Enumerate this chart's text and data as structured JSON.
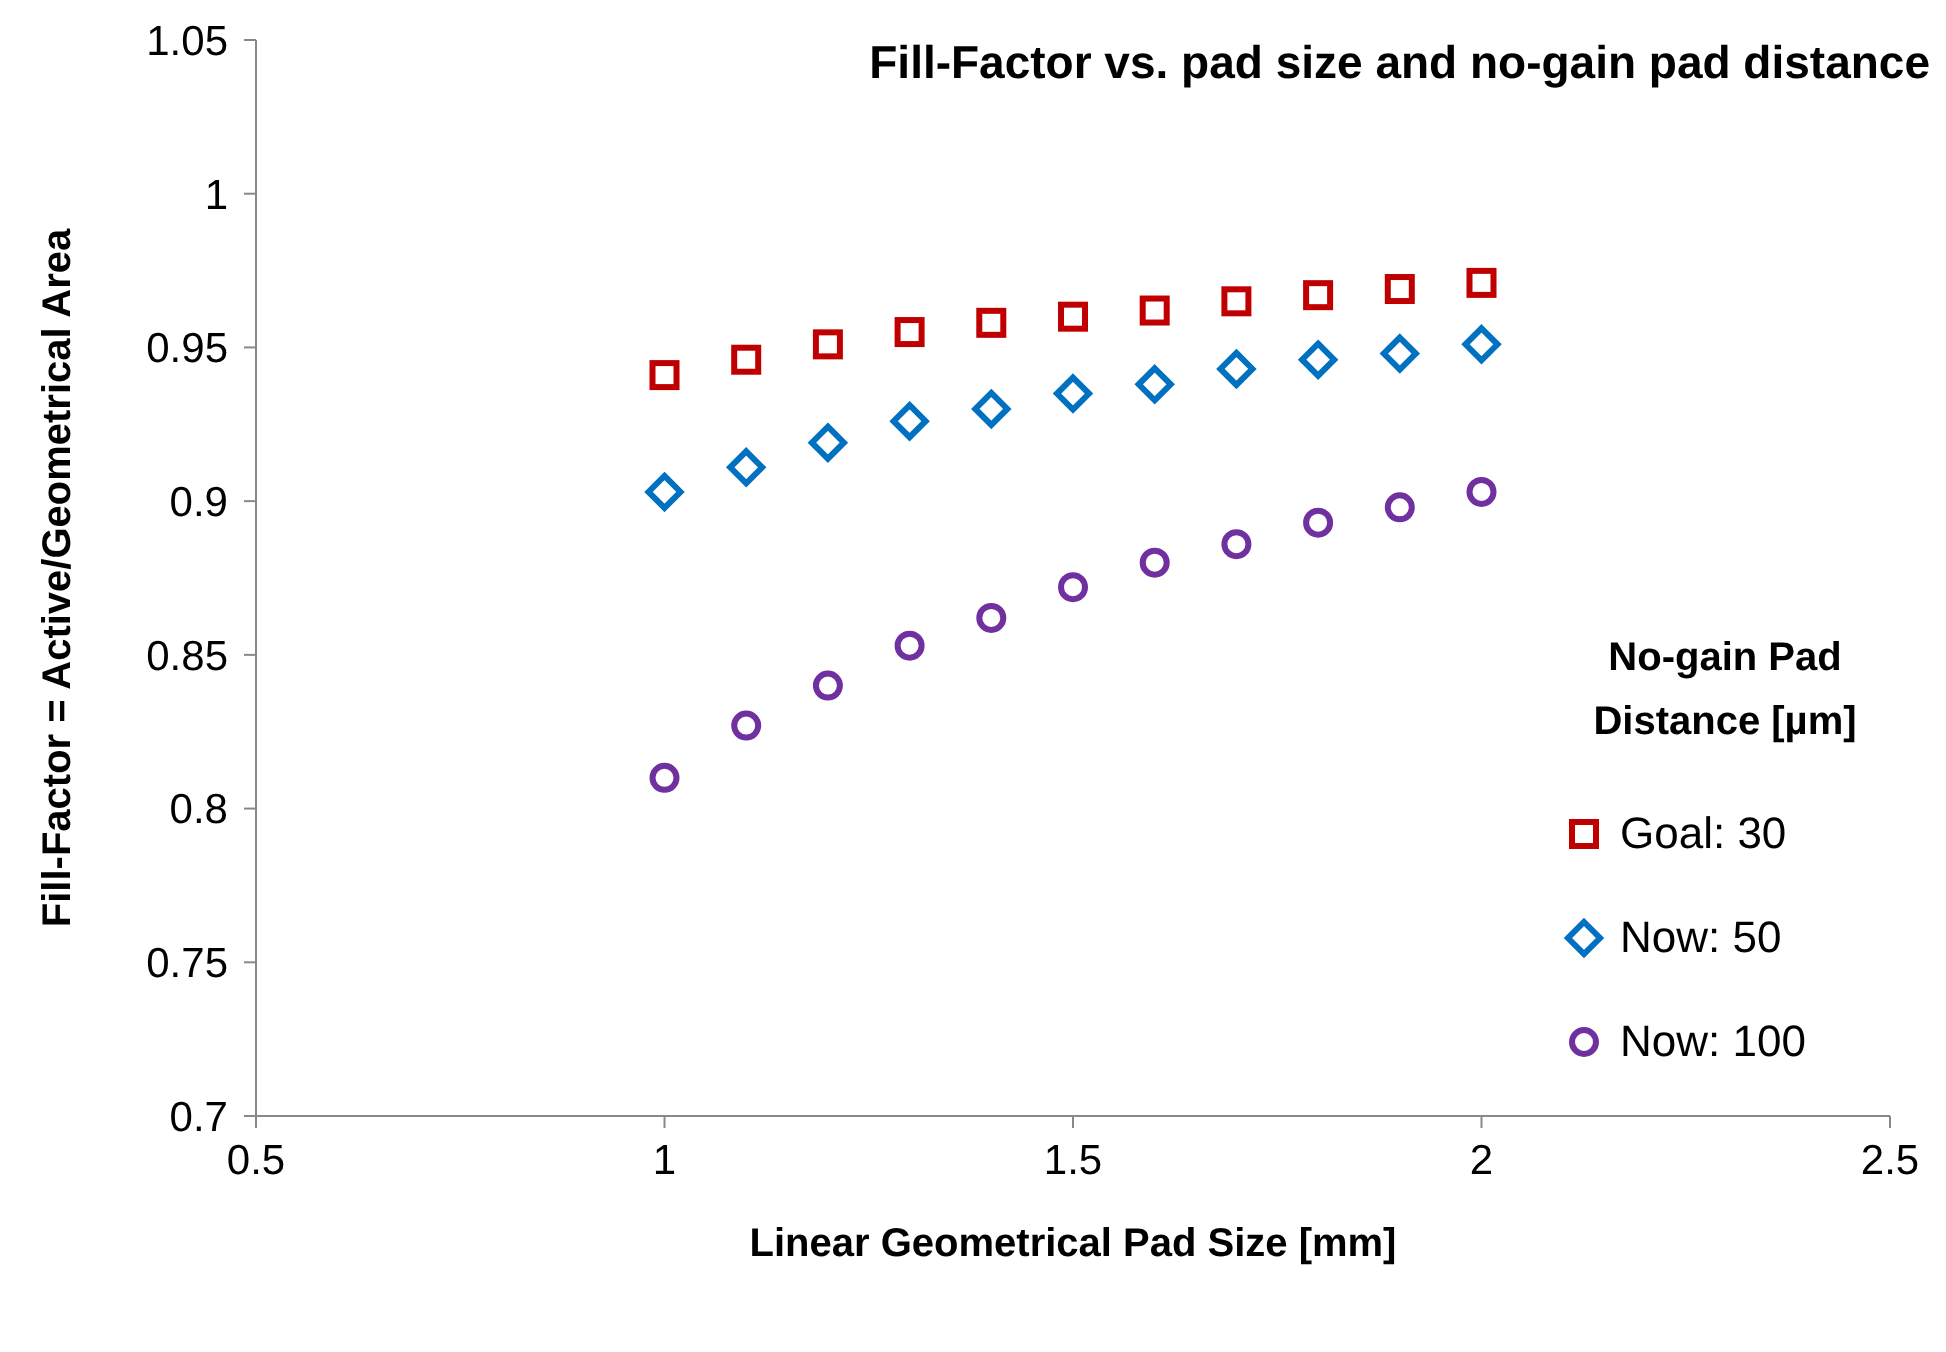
{
  "chart_data": {
    "type": "scatter",
    "title": "Fill-Factor vs. pad size and no-gain pad distance",
    "xlabel": "Linear Geometrical Pad Size [mm]",
    "ylabel": "Fill-Factor = Active/Geometrical  Area",
    "legend_title": "No-gain Pad Distance [µm]",
    "legend": "right",
    "grid": false,
    "x": [
      1,
      1.1,
      1.2,
      1.3,
      1.4,
      1.5,
      1.6,
      1.7,
      1.8,
      1.9,
      2
    ],
    "xlim": [
      0.5,
      2.5
    ],
    "xticks": [
      0.5,
      1,
      1.5,
      2,
      2.5
    ],
    "ylim": [
      0.7,
      1.05
    ],
    "yticks": [
      0.7,
      0.75,
      0.8,
      0.85,
      0.9,
      0.95,
      1,
      1.05
    ],
    "series": [
      {
        "name": "Goal: 30",
        "color": "#c00000",
        "marker": "square",
        "values": [
          0.941,
          0.946,
          0.951,
          0.955,
          0.958,
          0.96,
          0.962,
          0.965,
          0.967,
          0.969,
          0.971
        ]
      },
      {
        "name": "Now: 50",
        "color": "#0070c0",
        "marker": "diamond",
        "values": [
          0.903,
          0.911,
          0.919,
          0.926,
          0.93,
          0.935,
          0.938,
          0.943,
          0.946,
          0.948,
          0.951
        ]
      },
      {
        "name": "Now: 100",
        "color": "#7030a0",
        "marker": "circle",
        "values": [
          0.81,
          0.827,
          0.84,
          0.853,
          0.862,
          0.872,
          0.88,
          0.886,
          0.893,
          0.898,
          0.903
        ]
      }
    ]
  }
}
